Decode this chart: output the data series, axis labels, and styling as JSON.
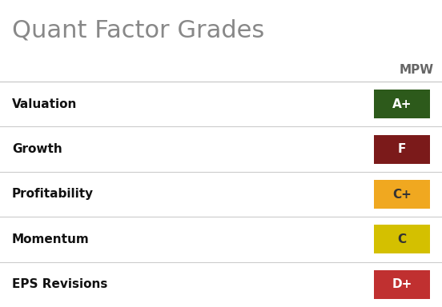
{
  "title": "Quant Factor Grades",
  "title_color": "#888888",
  "title_fontsize": 22,
  "column_header": "MPW",
  "column_header_color": "#666666",
  "column_header_fontsize": 11,
  "background_color": "#ffffff",
  "row_label_color": "#111111",
  "row_label_fontsize": 11,
  "rows": [
    {
      "label": "Valuation",
      "grade": "A+",
      "box_color": "#2d5a1b",
      "text_color": "#ffffff"
    },
    {
      "label": "Growth",
      "grade": "F",
      "box_color": "#7b1a1a",
      "text_color": "#ffffff"
    },
    {
      "label": "Profitability",
      "grade": "C+",
      "box_color": "#f0a820",
      "text_color": "#333333"
    },
    {
      "label": "Momentum",
      "grade": "C",
      "box_color": "#d4c000",
      "text_color": "#333333"
    },
    {
      "label": "EPS Revisions",
      "grade": "D+",
      "box_color": "#c03030",
      "text_color": "#ffffff"
    }
  ],
  "divider_color": "#cccccc",
  "grade_fontsize": 11
}
